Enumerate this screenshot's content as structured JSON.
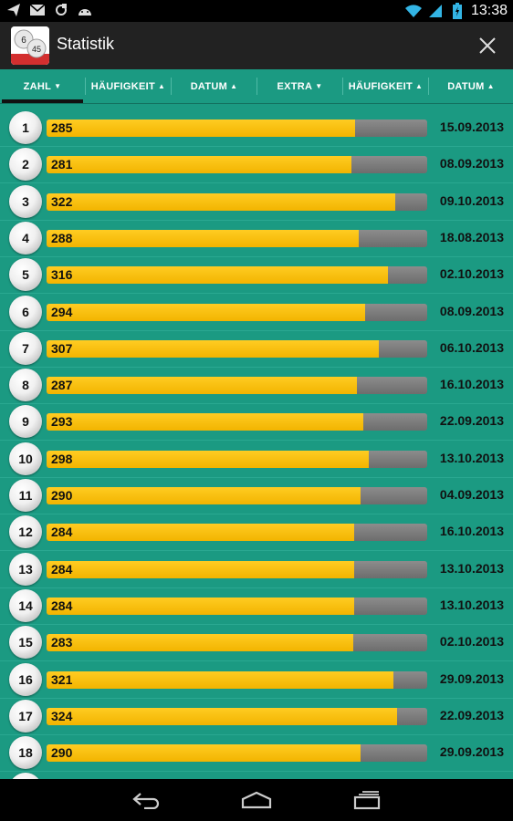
{
  "status_bar": {
    "time": "13:38",
    "icons_left": [
      "send-icon",
      "mail-icon",
      "sync-icon",
      "android-icon"
    ],
    "icons_right": [
      "wifi-icon",
      "signal-icon",
      "battery-icon"
    ]
  },
  "action_bar": {
    "title": "Statistik",
    "app_icon_numbers": [
      "6",
      "45"
    ],
    "close_icon": "close-icon"
  },
  "columns": [
    {
      "label": "ZAHL",
      "arrow": "▼",
      "active": true
    },
    {
      "label": "HÄUFIGKEIT",
      "arrow": "▲",
      "active": false
    },
    {
      "label": "DATUM",
      "arrow": "▲",
      "active": false
    },
    {
      "label": "EXTRA",
      "arrow": "▼",
      "active": false
    },
    {
      "label": "HÄUFIGKEIT",
      "arrow": "▲",
      "active": false
    },
    {
      "label": "DATUM",
      "arrow": "▲",
      "active": false
    }
  ],
  "bar_max": 360,
  "rows": [
    {
      "number": "1",
      "count": 285,
      "date": "15.09.2013",
      "fill": 0.81
    },
    {
      "number": "2",
      "count": 281,
      "date": "08.09.2013",
      "fill": 0.8
    },
    {
      "number": "3",
      "count": 322,
      "date": "09.10.2013",
      "fill": 0.915
    },
    {
      "number": "4",
      "count": 288,
      "date": "18.08.2013",
      "fill": 0.82
    },
    {
      "number": "5",
      "count": 316,
      "date": "02.10.2013",
      "fill": 0.897
    },
    {
      "number": "6",
      "count": 294,
      "date": "08.09.2013",
      "fill": 0.836
    },
    {
      "number": "7",
      "count": 307,
      "date": "06.10.2013",
      "fill": 0.872
    },
    {
      "number": "8",
      "count": 287,
      "date": "16.10.2013",
      "fill": 0.816
    },
    {
      "number": "9",
      "count": 293,
      "date": "22.09.2013",
      "fill": 0.833
    },
    {
      "number": "10",
      "count": 298,
      "date": "13.10.2013",
      "fill": 0.847
    },
    {
      "number": "11",
      "count": 290,
      "date": "04.09.2013",
      "fill": 0.824
    },
    {
      "number": "12",
      "count": 284,
      "date": "16.10.2013",
      "fill": 0.808
    },
    {
      "number": "13",
      "count": 284,
      "date": "13.10.2013",
      "fill": 0.808
    },
    {
      "number": "14",
      "count": 284,
      "date": "13.10.2013",
      "fill": 0.808
    },
    {
      "number": "15",
      "count": 283,
      "date": "02.10.2013",
      "fill": 0.805
    },
    {
      "number": "16",
      "count": 321,
      "date": "29.09.2013",
      "fill": 0.912
    },
    {
      "number": "17",
      "count": 324,
      "date": "22.09.2013",
      "fill": 0.92
    },
    {
      "number": "18",
      "count": 290,
      "date": "29.09.2013",
      "fill": 0.824
    }
  ],
  "colors": {
    "background": "#1b9a82",
    "bar_fill": "#f7bf00",
    "bar_track": "#7a7a7a",
    "action_bar": "#222222"
  },
  "nav_bar": {
    "buttons": [
      "back-icon",
      "home-icon",
      "recents-icon"
    ]
  }
}
